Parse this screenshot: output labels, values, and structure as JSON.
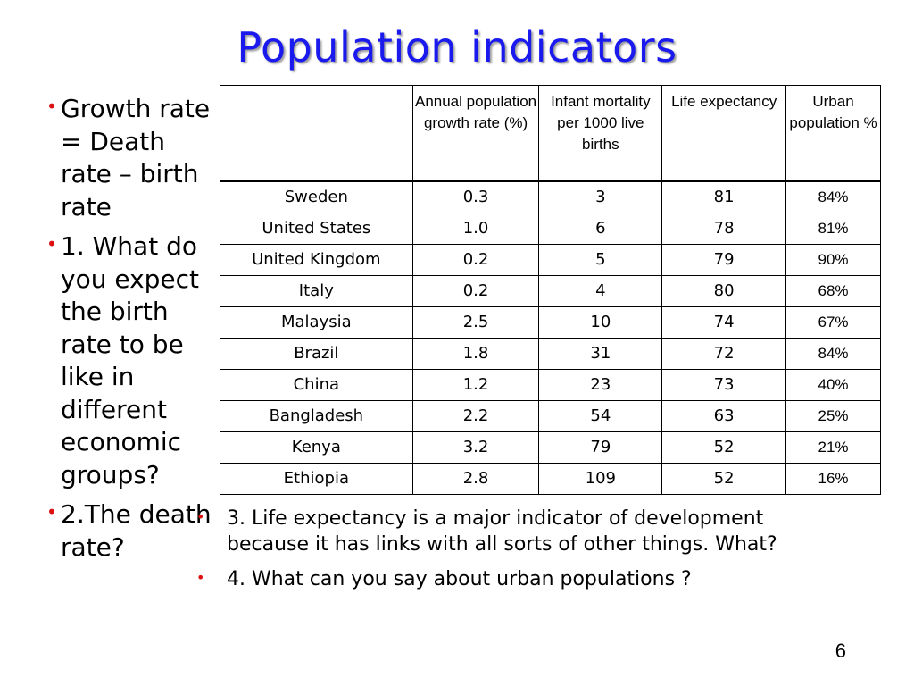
{
  "title": "Population indicators",
  "left_bullets": [
    "Growth rate = Death rate – birth rate",
    "1. What do you expect the birth rate to be like in different economic groups?",
    "2.The death rate?"
  ],
  "table": {
    "headers": [
      "",
      "Annual population growth rate (%)",
      "Infant mortality per 1000 live births",
      "Life expectancy",
      "Urban population %"
    ],
    "rows": [
      [
        "Sweden",
        "0.3",
        "3",
        "81",
        "84%"
      ],
      [
        "United States",
        "1.0",
        "6",
        "78",
        "81%"
      ],
      [
        "United Kingdom",
        "0.2",
        "5",
        "79",
        "90%"
      ],
      [
        "Italy",
        "0.2",
        "4",
        "80",
        "68%"
      ],
      [
        "Malaysia",
        "2.5",
        "10",
        "74",
        "67%"
      ],
      [
        "Brazil",
        "1.8",
        "31",
        "72",
        "84%"
      ],
      [
        "China",
        "1.2",
        "23",
        "73",
        "40%"
      ],
      [
        "Bangladesh",
        "2.2",
        "54",
        "63",
        "25%"
      ],
      [
        "Kenya",
        "3.2",
        "79",
        "52",
        "21%"
      ],
      [
        "Ethiopia",
        "2.8",
        "109",
        "52",
        "16%"
      ]
    ]
  },
  "right_bullets": [
    "3. Life expectancy is a major indicator of development because it has links with all sorts of other things. What?",
    "4. What can you say about urban populations ?"
  ],
  "page_number": "6",
  "colors": {
    "title": "#1a1aee",
    "bullet": "#dd1111"
  }
}
